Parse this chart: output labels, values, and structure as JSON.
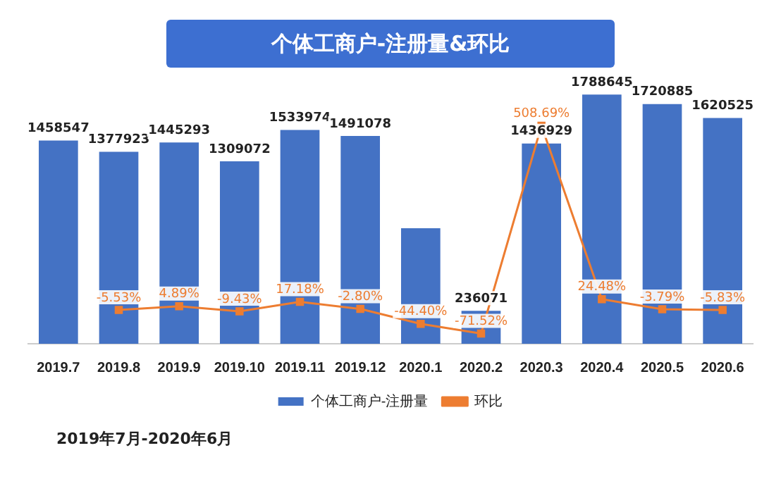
{
  "chart_data": {
    "type": "bar",
    "title": "个体工商户-注册量&环比",
    "categories": [
      "2019.7",
      "2019.8",
      "2019.9",
      "2019.10",
      "2019.11",
      "2019.12",
      "2020.1",
      "2020.2",
      "2020.3",
      "2020.4",
      "2020.5",
      "2020.6"
    ],
    "series": [
      {
        "name": "个体工商户-注册量",
        "color": "#4472c4",
        "values": [
          1458547,
          1377923,
          1445293,
          1309072,
          1533974,
          1491078,
          829000,
          236071,
          1436929,
          1788645,
          1720885,
          1620525
        ],
        "value_labels": [
          "1458547",
          "1377923",
          "1445293",
          "1309072",
          "1533974",
          "1491078",
          null,
          "236071",
          "1436929",
          "1788645",
          "1720885",
          "1620525"
        ]
      },
      {
        "name": "环比",
        "type": "line",
        "axis": "y2",
        "color": "#ed7d31",
        "marker": "square",
        "values": [
          null,
          -5.53,
          4.89,
          -9.43,
          17.18,
          -2.8,
          -44.4,
          -71.52,
          508.69,
          24.48,
          -3.79,
          -5.83
        ],
        "value_labels": [
          null,
          "-5.53%",
          "4.89%",
          "-9.43%",
          "17.18%",
          "-2.80%",
          "-44.40%",
          "-71.52%",
          "508.69%",
          "24.48%",
          "-3.79%",
          "-5.83%"
        ]
      }
    ],
    "legend": "bottom",
    "grid": false,
    "annotations": [
      "2019年7月-2020年6月"
    ]
  }
}
